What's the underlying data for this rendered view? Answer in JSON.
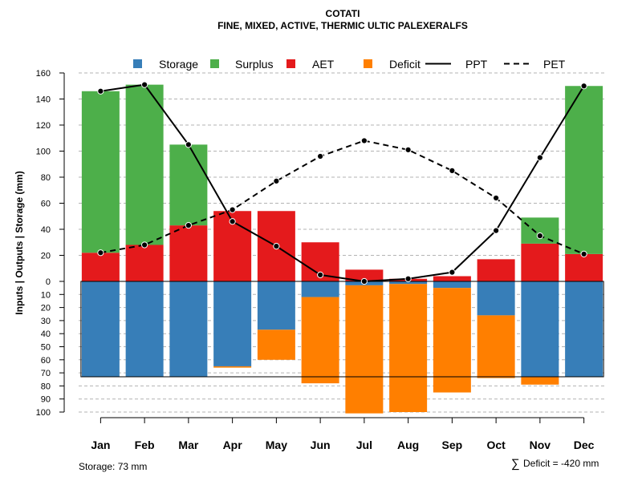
{
  "chart_data": {
    "type": "bar",
    "title": "COTATI",
    "subtitle": "FINE, MIXED, ACTIVE, THERMIC ULTIC PALEXERALFS",
    "ylabel": "Inputs | Outputs | Storage    (mm)",
    "categories": [
      "Jan",
      "Feb",
      "Mar",
      "Apr",
      "May",
      "Jun",
      "Jul",
      "Aug",
      "Sep",
      "Oct",
      "Nov",
      "Dec"
    ],
    "ylim_top": [
      0,
      160
    ],
    "ylim_bottom": [
      0,
      100
    ],
    "yticks_top": [
      "0",
      "20",
      "40",
      "60",
      "80",
      "100",
      "120",
      "140",
      "160"
    ],
    "yticks_bottom": [
      "0",
      "10",
      "20",
      "30",
      "40",
      "50",
      "60",
      "70",
      "80",
      "90",
      "100"
    ],
    "legend": [
      {
        "label": "Storage",
        "color": "#377eb8",
        "kind": "box"
      },
      {
        "label": "Surplus",
        "color": "#4daf4a",
        "kind": "box"
      },
      {
        "label": "AET",
        "color": "#e41a1c",
        "kind": "box"
      },
      {
        "label": "Deficit",
        "color": "#ff7f00",
        "kind": "box"
      },
      {
        "label": "PPT",
        "color": "#000000",
        "kind": "solid"
      },
      {
        "label": "PET",
        "color": "#000000",
        "kind": "dashed"
      }
    ],
    "series": [
      {
        "name": "AET",
        "values": [
          22,
          28,
          43,
          54,
          54,
          30,
          9,
          2,
          4,
          17,
          29,
          21
        ]
      },
      {
        "name": "Surplus",
        "values": [
          124,
          123,
          62,
          0,
          0,
          0,
          0,
          0,
          0,
          0,
          20,
          129
        ]
      },
      {
        "name": "PPT",
        "values": [
          146,
          151,
          105,
          46,
          27,
          5,
          0,
          2,
          7,
          39,
          95,
          150
        ]
      },
      {
        "name": "PET",
        "values": [
          22,
          28,
          43,
          55,
          77,
          96,
          108,
          101,
          85,
          64,
          35,
          21
        ]
      },
      {
        "name": "Storage",
        "values": [
          73,
          73,
          73,
          65,
          37,
          12,
          3,
          2,
          5,
          26,
          73,
          73
        ]
      },
      {
        "name": "Deficit",
        "values": [
          0,
          0,
          0,
          1,
          23,
          66,
          98,
          98,
          80,
          48,
          6,
          0
        ]
      }
    ],
    "awc_line": 73,
    "footer_left": "Storage: 73 mm",
    "footer_right_symbol": "∑",
    "footer_right": "Deficit = -420 mm"
  },
  "colors": {
    "storage": "#377eb8",
    "surplus": "#4daf4a",
    "aet": "#e41a1c",
    "deficit": "#ff7f00",
    "grid": "#b3b3b3"
  }
}
